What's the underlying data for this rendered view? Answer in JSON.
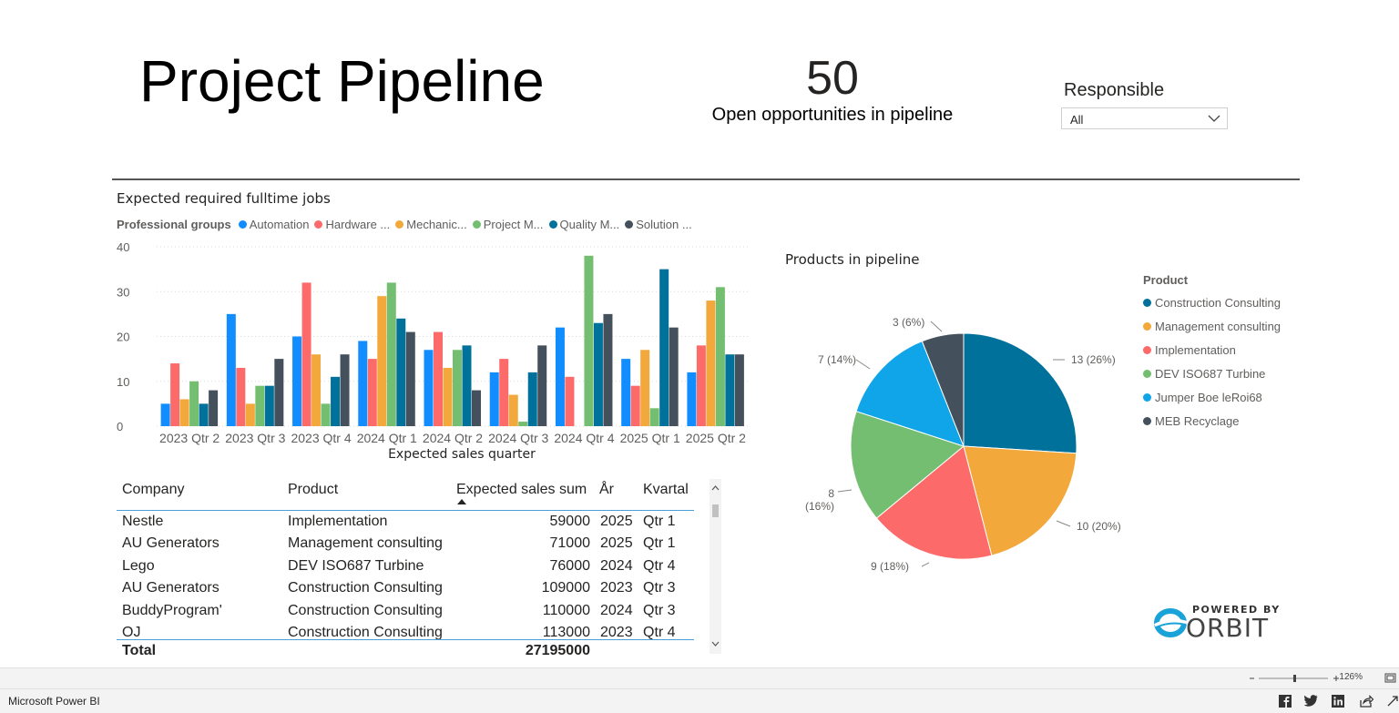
{
  "header": {
    "title": "Project Pipeline",
    "kpi_value": "50",
    "kpi_label": "Open opportunities in pipeline",
    "filter_label": "Responsible",
    "filter_value": "All"
  },
  "bar_chart": {
    "title": "Expected required fulltime jobs",
    "legend_title": "Professional groups",
    "legend_items": [
      "Automation",
      "Hardware ...",
      "Mechanic...",
      "Project M...",
      "Quality M...",
      "Solution ..."
    ]
  },
  "table": {
    "headers": {
      "company": "Company",
      "product": "Product",
      "sum": "Expected sales sum",
      "year": "År",
      "quarter": "Kvartal"
    },
    "rows": [
      {
        "company": "Nestle",
        "product": "Implementation",
        "sum": "59000",
        "year": "2025",
        "quarter": "Qtr 1"
      },
      {
        "company": "AU Generators",
        "product": "Management consulting",
        "sum": "71000",
        "year": "2025",
        "quarter": "Qtr 1"
      },
      {
        "company": "Lego",
        "product": "DEV ISO687 Turbine",
        "sum": "76000",
        "year": "2024",
        "quarter": "Qtr 4"
      },
      {
        "company": "AU Generators",
        "product": "Construction Consulting",
        "sum": "109000",
        "year": "2023",
        "quarter": "Qtr 3"
      },
      {
        "company": "BuddyProgram'",
        "product": "Construction Consulting",
        "sum": "110000",
        "year": "2024",
        "quarter": "Qtr 3"
      },
      {
        "company": "OJ",
        "product": "Construction Consulting",
        "sum": "113000",
        "year": "2023",
        "quarter": "Qtr 4"
      }
    ],
    "total_label": "Total",
    "total_value": "27195000"
  },
  "pie_chart": {
    "title": "Products in pipeline",
    "legend_title": "Product"
  },
  "chart_data": [
    {
      "type": "bar",
      "title": "Expected required fulltime jobs",
      "xlabel": "Expected sales quarter",
      "ylabel": "",
      "ylim": [
        0,
        40
      ],
      "yticks": [
        0,
        10,
        20,
        30,
        40
      ],
      "grid": true,
      "legend_position": "top",
      "categories": [
        "2023 Qtr 2",
        "2023 Qtr 3",
        "2023 Qtr 4",
        "2024 Qtr 1",
        "2024 Qtr 2",
        "2024 Qtr 3",
        "2024 Qtr 4",
        "2025 Qtr 1",
        "2025 Qtr 2"
      ],
      "series": [
        {
          "name": "Automation",
          "color": "#118dff",
          "values": [
            5,
            25,
            20,
            19,
            17,
            12,
            22,
            15,
            12
          ]
        },
        {
          "name": "Hardware ...",
          "color": "#fd6a6a",
          "values": [
            14,
            13,
            32,
            15,
            21,
            15,
            11,
            9,
            18
          ]
        },
        {
          "name": "Mechanic...",
          "color": "#f3a83b",
          "values": [
            6,
            5,
            16,
            29,
            13,
            7,
            null,
            17,
            28
          ]
        },
        {
          "name": "Project M...",
          "color": "#73be70",
          "values": [
            10,
            9,
            5,
            32,
            17,
            1,
            38,
            4,
            31
          ]
        },
        {
          "name": "Quality M...",
          "color": "#00719a",
          "values": [
            5,
            9,
            11,
            24,
            18,
            12,
            23,
            35,
            16
          ]
        },
        {
          "name": "Solution ...",
          "color": "#44505b",
          "values": [
            8,
            15,
            16,
            21,
            8,
            18,
            25,
            22,
            16
          ]
        }
      ]
    },
    {
      "type": "pie",
      "title": "Products in pipeline",
      "legend_title": "Product",
      "legend_position": "right",
      "slices": [
        {
          "name": "Construction Consulting",
          "value": 13,
          "label": "13 (26%)",
          "color": "#00719a"
        },
        {
          "name": "Management consulting",
          "value": 10,
          "label": "10 (20%)",
          "color": "#f3a83b"
        },
        {
          "name": "Implementation",
          "value": 9,
          "label": "9 (18%)",
          "color": "#fd6a6a"
        },
        {
          "name": "DEV ISO687 Turbine",
          "value": 8,
          "label": "8 (16%)",
          "color": "#73be70"
        },
        {
          "name": "Jumper Boe leRoi68",
          "value": 7,
          "label": "7 (14%)",
          "color": "#10a5e8"
        },
        {
          "name": "MEB Recyclage",
          "value": 3,
          "label": "3 (6%)",
          "color": "#44505b"
        }
      ]
    }
  ],
  "branding": {
    "powered_by": "POWERED BY",
    "brand": "ORBIT"
  },
  "statusbar": {
    "zoom": "126%"
  },
  "taskbar": {
    "app_name": "Microsoft Power BI"
  }
}
